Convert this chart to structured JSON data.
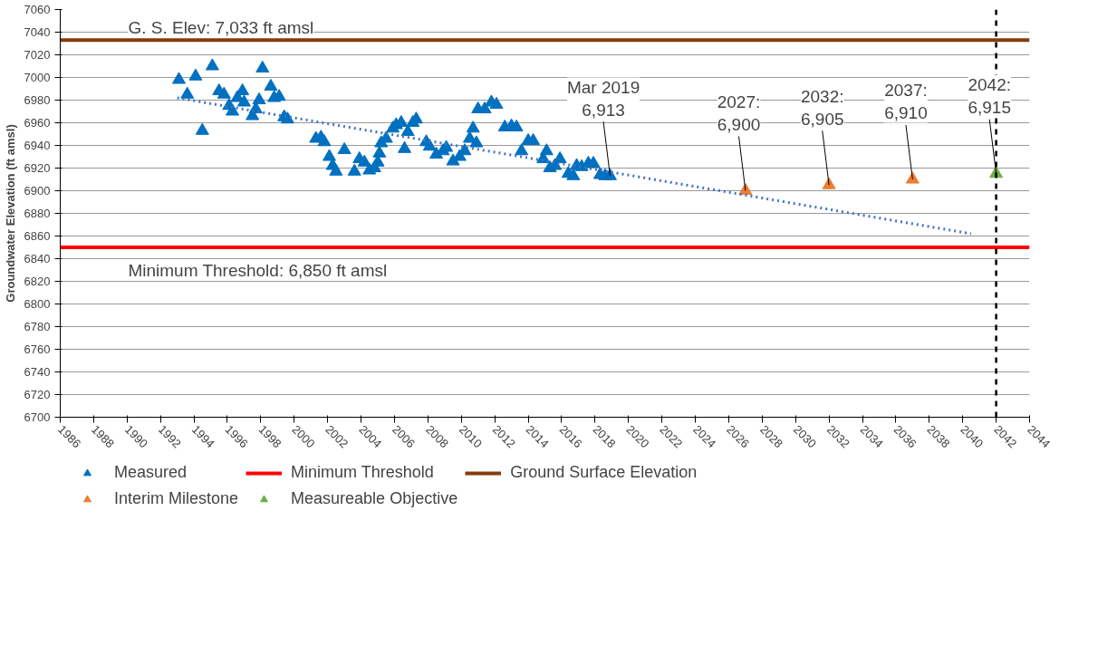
{
  "chart_data": {
    "type": "scatter",
    "xlabel": null,
    "ylabel": "Groundwater Elevation (ft amsl)",
    "xlim": [
      1986,
      2044
    ],
    "xticks": [
      1986,
      1988,
      1990,
      1992,
      1994,
      1996,
      1998,
      2000,
      2002,
      2004,
      2006,
      2008,
      2010,
      2012,
      2014,
      2016,
      2018,
      2020,
      2022,
      2024,
      2026,
      2028,
      2030,
      2032,
      2034,
      2036,
      2038,
      2040,
      2042,
      2044
    ],
    "ylim": [
      6700,
      7060
    ],
    "yticks": [
      6700,
      6720,
      6740,
      6760,
      6780,
      6800,
      6820,
      6840,
      6860,
      6880,
      6900,
      6920,
      6940,
      6960,
      6980,
      7000,
      7020,
      7040,
      7060
    ],
    "grid": "y",
    "legend": "bottom",
    "series": [
      {
        "name": "Measured",
        "marker": "triangle",
        "color": "#0070c0",
        "x": [
          1993.1,
          1993.6,
          1994.1,
          1994.5,
          1995.1,
          1995.5,
          1995.8,
          1996.1,
          1996.3,
          1996.6,
          1996.9,
          1997.0,
          1997.5,
          1997.7,
          1997.9,
          1998.1,
          1998.6,
          1998.8,
          1999.1,
          1999.4,
          1999.6,
          2001.3,
          2001.6,
          2001.8,
          2002.1,
          2002.3,
          2002.5,
          2003.0,
          2003.6,
          2003.9,
          2004.2,
          2004.5,
          2004.8,
          2005.0,
          2005.1,
          2005.2,
          2005.5,
          2005.9,
          2006.1,
          2006.4,
          2006.6,
          2006.8,
          2007.1,
          2007.3,
          2007.9,
          2008.1,
          2008.5,
          2008.9,
          2009.1,
          2009.5,
          2009.9,
          2010.2,
          2010.5,
          2010.7,
          2010.9,
          2011.0,
          2011.4,
          2011.8,
          2012.1,
          2012.6,
          2013.0,
          2013.3,
          2013.6,
          2014.0,
          2014.3,
          2014.9,
          2015.1,
          2015.3,
          2015.6,
          2015.9,
          2016.4,
          2016.7,
          2016.9,
          2017.2,
          2017.6,
          2017.9,
          2018.3,
          2018.6,
          2018.9
        ],
        "values": [
          6998,
          6985,
          7001,
          6953,
          7010,
          6988,
          6985,
          6975,
          6970,
          6982,
          6988,
          6978,
          6966,
          6972,
          6980,
          7008,
          6992,
          6982,
          6983,
          6965,
          6963,
          6946,
          6947,
          6943,
          6930,
          6922,
          6917,
          6936,
          6917,
          6928,
          6925,
          6918,
          6920,
          6925,
          6933,
          6942,
          6946,
          6955,
          6958,
          6960,
          6937,
          6952,
          6960,
          6963,
          6943,
          6939,
          6932,
          6935,
          6938,
          6926,
          6930,
          6935,
          6946,
          6955,
          6942,
          6972,
          6972,
          6978,
          6976,
          6956,
          6957,
          6956,
          6935,
          6944,
          6944,
          6928,
          6935,
          6920,
          6922,
          6928,
          6915,
          6913,
          6922,
          6921,
          6924,
          6924,
          6914,
          6913,
          6913
        ]
      },
      {
        "name": "Minimum Threshold",
        "type": "line",
        "color": "#ff0000",
        "x": [
          1986,
          2044
        ],
        "values": [
          6850,
          6850
        ]
      },
      {
        "name": "Ground Surface Elevation",
        "type": "line",
        "color": "#843c0c",
        "x": [
          1986,
          2044
        ],
        "values": [
          7033,
          7033
        ]
      },
      {
        "name": "Interim Milestone",
        "marker": "triangle",
        "color": "#ed7d31",
        "x": [
          2027,
          2032,
          2037
        ],
        "values": [
          6900,
          6905,
          6910
        ]
      },
      {
        "name": "Measureable Objective",
        "marker": "triangle",
        "color": "#70ad47",
        "x": [
          2042
        ],
        "values": [
          6915
        ]
      },
      {
        "type": "line",
        "line_style": "dotted",
        "color": "#4472c4",
        "x": [
          1993,
          2040.5
        ],
        "values": [
          6982,
          6862
        ]
      }
    ],
    "ref_lines": [
      {
        "axis": "x",
        "value": 2042,
        "color": "#000000",
        "line_style": "dashed"
      }
    ],
    "annotations": [
      "G. S. Elev: 7,033 ft amsl",
      "Minimum Threshold: 6,850 ft amsl",
      {
        "text": "Mar 2019\n6,913",
        "x": 2018.9,
        "y": 6913
      },
      {
        "text": "2027:\n6,900",
        "x": 2027,
        "y": 6900
      },
      {
        "text": "2032:\n6,905",
        "x": 2032,
        "y": 6905
      },
      {
        "text": "2037:\n6,910",
        "x": 2037,
        "y": 6910
      },
      {
        "text": "2042:\n6,915",
        "x": 2042,
        "y": 6915
      }
    ]
  }
}
